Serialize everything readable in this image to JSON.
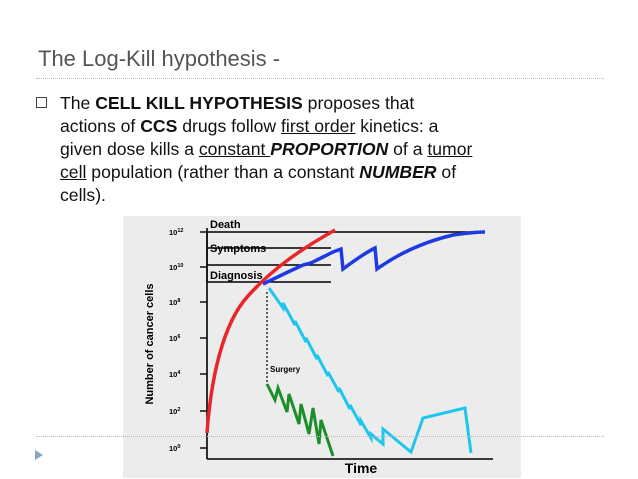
{
  "slide": {
    "title": "The Log-Kill hypothesis -",
    "bullet": {
      "line1": {
        "t1": "The ",
        "b1": "CELL KILL HYPOTHESIS",
        "t2": " proposes that"
      },
      "line2": {
        "t1": "actions of ",
        "b1": "CCS",
        "t2": " drugs follow ",
        "u1": "first order",
        "t3": " kinetics:  a"
      },
      "line3": {
        "t1": "given dose kills a ",
        "u1": "constant ",
        "bi1": "PROPORTION",
        "t2": " of a ",
        "u2": "tumor"
      },
      "line4": {
        "u1": "cell",
        "t1": " population (rather than a constant ",
        "bi1": "NUMBER",
        "t2": " of"
      },
      "line5": {
        "t1": "cells)."
      }
    }
  },
  "figure": {
    "y_axis_label": "Number of cancer cells",
    "y_ticks": [
      "10",
      "10",
      "10",
      "10",
      "10",
      "10",
      "10"
    ],
    "y_tick_exponents": [
      "12",
      "10",
      "8",
      "6",
      "4",
      "2",
      "0"
    ],
    "x_axis_label": "Time",
    "stages": {
      "death": "Death",
      "symptoms": "Symptoms",
      "diagnosis": "Diagnosis"
    },
    "surgery_label": "Surgery",
    "colors": {
      "untreated": "#e8262a",
      "inadequate_treatment": "#1f3be0",
      "chemotherapy": "#1ec6ee",
      "surgery_plus_chemo": "#1c8f2a",
      "panel_background": "#ececec",
      "slide_title": "#555555",
      "corner_arrow": "#8aa4c8"
    }
  }
}
